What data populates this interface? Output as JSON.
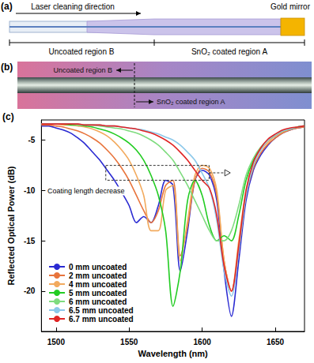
{
  "panels": {
    "a": {
      "label": "(a)",
      "laser_cleaning": "Laser cleaning direction",
      "gold_mirror": "Gold mirror",
      "region_b": "Uncoated region B",
      "region_a": "SnO₂ coated region A"
    },
    "b": {
      "label": "(b)",
      "region_b": "Uncoated region B",
      "region_a": "SnO₂ coated region A"
    }
  },
  "chart_data": {
    "label": "(c)",
    "type": "line",
    "x_label": "Wavelength (nm)",
    "y_label": "Reflected Optical Power (dB)",
    "annotation": "Coating length decrease",
    "xlim": [
      1490,
      1670
    ],
    "xticks": [
      1500,
      1550,
      1600,
      1650
    ],
    "ylim": [
      -24,
      -3
    ],
    "yticks": [
      -5,
      -10,
      -15,
      -20
    ],
    "grid": false,
    "legend": "lower left",
    "marker": "none",
    "line_style": "solid",
    "x": [
      1490,
      1495,
      1500,
      1505,
      1510,
      1515,
      1520,
      1525,
      1530,
      1535,
      1540,
      1545,
      1550,
      1555,
      1560,
      1565,
      1570,
      1575,
      1580,
      1585,
      1590,
      1595,
      1600,
      1605,
      1610,
      1615,
      1620,
      1625,
      1630,
      1635,
      1640,
      1645,
      1650,
      1655,
      1660,
      1665,
      1670
    ],
    "series": [
      {
        "name": "0 mm uncoated",
        "color": "#2a2ad2",
        "values": [
          -3.6,
          -3.6,
          -3.8,
          -4.0,
          -4.3,
          -4.8,
          -5.4,
          -6.2,
          -7.0,
          -8.0,
          -9.0,
          -10.2,
          -11.5,
          -13.2,
          -12.6,
          -13.2,
          -11.5,
          -9.0,
          -9.5,
          -18.0,
          -14.0,
          -9.0,
          -8.0,
          -8.5,
          -11.0,
          -18.0,
          -22.5,
          -17.0,
          -11.0,
          -8.0,
          -6.5,
          -5.5,
          -4.8,
          -4.3,
          -4.0,
          -3.8,
          -3.7
        ]
      },
      {
        "name": "2 mm uncoated",
        "color": "#e8743c",
        "values": [
          -3.5,
          -3.5,
          -3.6,
          -3.7,
          -3.9,
          -4.1,
          -4.4,
          -4.8,
          -5.3,
          -6.0,
          -6.8,
          -7.8,
          -9.0,
          -10.5,
          -12.0,
          -13.2,
          -12.0,
          -9.5,
          -9.0,
          -16.5,
          -13.5,
          -9.0,
          -7.8,
          -8.2,
          -10.5,
          -17.0,
          -20.0,
          -16.0,
          -10.5,
          -7.8,
          -6.3,
          -5.4,
          -4.8,
          -4.3,
          -4.0,
          -3.8,
          -3.7
        ]
      },
      {
        "name": "4 mm uncoated",
        "color": "#f2aa5e",
        "values": [
          -3.4,
          -3.4,
          -3.4,
          -3.5,
          -3.5,
          -3.6,
          -3.7,
          -3.9,
          -4.2,
          -4.6,
          -5.2,
          -6.0,
          -7.0,
          -8.5,
          -10.5,
          -14.0,
          -14.0,
          -10.0,
          -9.5,
          -17.0,
          -13.0,
          -8.5,
          -7.5,
          -7.8,
          -10.0,
          -17.0,
          -20.0,
          -15.0,
          -10.0,
          -7.5,
          -6.0,
          -5.2,
          -4.6,
          -4.2,
          -3.9,
          -3.7,
          -3.6
        ]
      },
      {
        "name": "5 mm uncoated",
        "color": "#22cc22",
        "values": [
          -3.4,
          -3.4,
          -3.4,
          -3.4,
          -3.5,
          -3.5,
          -3.6,
          -3.7,
          -3.9,
          -4.1,
          -4.4,
          -4.8,
          -5.3,
          -6.0,
          -7.0,
          -8.5,
          -10.5,
          -14.0,
          -21.5,
          -18.0,
          -11.0,
          -9.0,
          -10.5,
          -13.5,
          -15.0,
          -14.5,
          -15.0,
          -12.5,
          -9.0,
          -7.0,
          -5.8,
          -5.0,
          -4.5,
          -4.1,
          -3.9,
          -3.7,
          -3.6
        ]
      },
      {
        "name": "6 mm uncoated",
        "color": "#7fdc7f",
        "values": [
          -3.4,
          -3.4,
          -3.4,
          -3.4,
          -3.4,
          -3.5,
          -3.5,
          -3.5,
          -3.6,
          -3.7,
          -3.8,
          -3.9,
          -4.1,
          -4.3,
          -4.6,
          -5.0,
          -5.5,
          -6.2,
          -7.0,
          -8.2,
          -9.5,
          -11.0,
          -12.5,
          -14.0,
          -15.0,
          -15.0,
          -14.0,
          -11.5,
          -8.5,
          -6.8,
          -5.7,
          -5.0,
          -4.5,
          -4.1,
          -3.9,
          -3.7,
          -3.6
        ]
      },
      {
        "name": "6.5 mm uncoated",
        "color": "#8cc8ea",
        "values": [
          -3.4,
          -3.4,
          -3.4,
          -3.4,
          -3.4,
          -3.4,
          -3.5,
          -3.5,
          -3.5,
          -3.6,
          -3.6,
          -3.7,
          -3.8,
          -3.9,
          -4.0,
          -4.2,
          -4.4,
          -4.7,
          -5.0,
          -5.5,
          -6.2,
          -7.0,
          -8.3,
          -9.8,
          -13.0,
          -18.0,
          -20.5,
          -16.0,
          -10.5,
          -7.5,
          -6.0,
          -5.0,
          -4.5,
          -4.1,
          -3.9,
          -3.7,
          -3.6
        ]
      },
      {
        "name": "6.7 mm uncoated",
        "color": "#e02424",
        "values": [
          -3.4,
          -3.4,
          -3.4,
          -3.4,
          -3.4,
          -3.4,
          -3.5,
          -3.5,
          -3.5,
          -3.6,
          -3.6,
          -3.7,
          -3.8,
          -3.9,
          -4.1,
          -4.3,
          -4.6,
          -5.0,
          -5.5,
          -6.2,
          -7.0,
          -8.0,
          -9.0,
          -9.8,
          -12.5,
          -17.5,
          -20.0,
          -15.5,
          -10.0,
          -7.2,
          -5.8,
          -4.9,
          -4.4,
          -4.0,
          -3.8,
          -3.7,
          -3.6
        ]
      }
    ]
  }
}
